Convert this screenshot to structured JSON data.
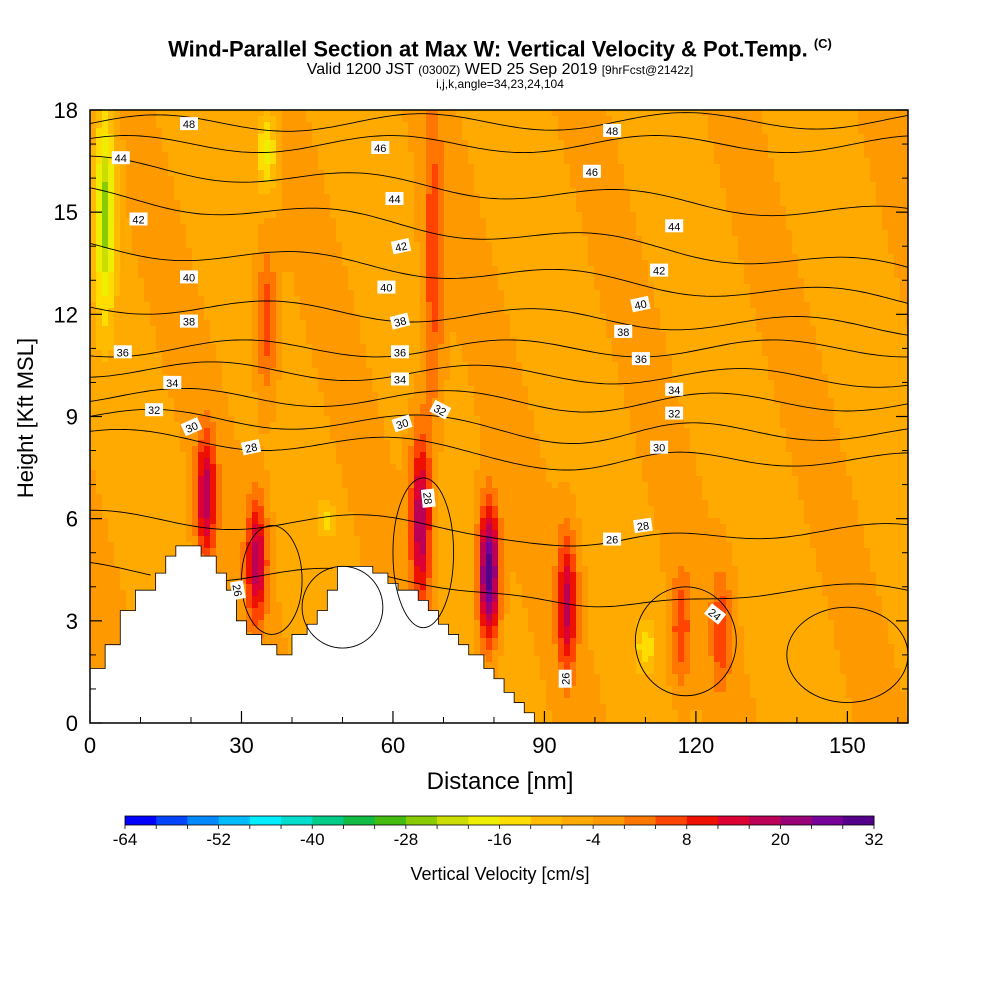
{
  "header": {
    "title": "Wind-Parallel Section at Max W: Vertical Velocity & Pot.Temp.",
    "copyright_mark": "(C)",
    "valid_main": "Valid 1200 JST",
    "valid_utc": "(0300Z)",
    "valid_date": "WED 25 Sep 2019",
    "forecast_tag": "[9hrFcst@2142z]",
    "grid_info": "i,j,k,angle=34,23,24,104"
  },
  "chart_data": {
    "type": "heatmap",
    "xlabel": "Distance [nm]",
    "ylabel": "Height [Kft MSL]",
    "xlim": [
      0,
      162
    ],
    "ylim": [
      0,
      18
    ],
    "x_ticks": [
      0,
      30,
      60,
      90,
      120,
      150
    ],
    "y_ticks": [
      0,
      3,
      6,
      9,
      12,
      15,
      18
    ],
    "colorbar": {
      "label": "Vertical Velocity [cm/s]",
      "tick_labels": [
        "-64",
        "-52",
        "-40",
        "-28",
        "-16",
        "-4",
        "8",
        "20",
        "32"
      ],
      "colors": [
        "#0000ff",
        "#0044ff",
        "#0088ff",
        "#00bbff",
        "#00eeff",
        "#00ddcc",
        "#00cc88",
        "#11bb44",
        "#44bb11",
        "#88cc00",
        "#ccdd00",
        "#eeee00",
        "#ffdd00",
        "#ffbb00",
        "#ffaa00",
        "#ff9900",
        "#ff7700",
        "#ff4400",
        "#ee1100",
        "#dd0033",
        "#bb0055",
        "#990077",
        "#770099",
        "#550088"
      ]
    },
    "background_velocity": -2,
    "updraft_cores": [
      {
        "x": 79,
        "y_bottom": 2.5,
        "y_top": 6.3,
        "w_max": 36
      },
      {
        "x": 65.5,
        "y_bottom": 3.5,
        "y_top": 8.5,
        "w_max": 24
      },
      {
        "x": 23,
        "y_bottom": 4.8,
        "y_top": 8.5,
        "w_max": 22
      },
      {
        "x": 33,
        "y_bottom": 3.0,
        "y_top": 6.5,
        "w_max": 22
      },
      {
        "x": 94.5,
        "y_bottom": 1.5,
        "y_top": 5.5,
        "w_max": 20
      },
      {
        "x": 117,
        "y_bottom": 1.0,
        "y_top": 4.5,
        "w_max": 10
      },
      {
        "x": 125,
        "y_bottom": 1.0,
        "y_top": 4.5,
        "w_max": 10
      },
      {
        "x": 68,
        "y_bottom": 9.0,
        "y_top": 18.0,
        "w_max": 10
      },
      {
        "x": 35,
        "y_bottom": 9.5,
        "y_top": 14.0,
        "w_max": 10
      }
    ],
    "downdraft_cores": [
      {
        "x": 3,
        "y_bottom": 12.0,
        "y_top": 18.0,
        "w_min": -24
      },
      {
        "x": 35,
        "y_bottom": 15.5,
        "y_top": 18.0,
        "w_min": -16
      },
      {
        "x": 110,
        "y_bottom": 1.5,
        "y_top": 3.0,
        "w_min": -12
      },
      {
        "x": 47,
        "y_bottom": 5.5,
        "y_top": 6.5,
        "w_min": -12
      }
    ],
    "theta_contours": [
      {
        "value": 48,
        "height_at_x": {
          "0": 17.6,
          "160": 17.7
        }
      },
      {
        "value": 46,
        "height_at_x": {
          "0": 17.0,
          "160": 17.0
        }
      },
      {
        "value": 44,
        "height_at_x": {
          "0": 16.4,
          "160": 14.9
        }
      },
      {
        "value": 42,
        "height_at_x": {
          "0": 15.5,
          "160": 13.3
        }
      },
      {
        "value": 40,
        "height_at_x": {
          "0": 14.0,
          "160": 12.4
        }
      },
      {
        "value": 38,
        "height_at_x": {
          "0": 12.3,
          "160": 11.6
        }
      },
      {
        "value": 36,
        "height_at_x": {
          "0": 11.0,
          "160": 11.0
        }
      },
      {
        "value": 34,
        "height_at_x": {
          "0": 10.4,
          "160": 10.1
        }
      },
      {
        "value": 32,
        "height_at_x": {
          "0": 9.6,
          "160": 9.4
        }
      },
      {
        "value": 30,
        "height_at_x": {
          "0": 9.0,
          "160": 8.5
        }
      },
      {
        "value": 28,
        "height_at_x": {
          "0": 8.4,
          "160": 7.7
        }
      },
      {
        "value": 26,
        "height_at_x": {
          "0": 6.0,
          "160": 5.6
        }
      },
      {
        "value": 24,
        "height_at_x": {
          "0": 4.5,
          "160": 3.8
        }
      }
    ],
    "contour_labels": [
      {
        "text": "48",
        "x": 19.6,
        "y": 17.6,
        "angle": 0
      },
      {
        "text": "48",
        "x": 103.4,
        "y": 17.4,
        "angle": 0
      },
      {
        "text": "46",
        "x": 57.5,
        "y": 16.9,
        "angle": 0
      },
      {
        "text": "46",
        "x": 99.4,
        "y": 16.2,
        "angle": 0
      },
      {
        "text": "44",
        "x": 6.1,
        "y": 16.6,
        "angle": 0
      },
      {
        "text": "44",
        "x": 60.3,
        "y": 15.4,
        "angle": 0
      },
      {
        "text": "44",
        "x": 115.7,
        "y": 14.6,
        "angle": 0
      },
      {
        "text": "42",
        "x": 9.6,
        "y": 14.8,
        "angle": 0
      },
      {
        "text": "42",
        "x": 61.6,
        "y": 14.0,
        "angle": 12
      },
      {
        "text": "42",
        "x": 112.7,
        "y": 13.3,
        "angle": 0
      },
      {
        "text": "40",
        "x": 19.6,
        "y": 13.1,
        "angle": 0
      },
      {
        "text": "40",
        "x": 58.7,
        "y": 12.8,
        "angle": 0
      },
      {
        "text": "40",
        "x": 109.0,
        "y": 12.3,
        "angle": 12
      },
      {
        "text": "38",
        "x": 19.6,
        "y": 11.8,
        "angle": 0
      },
      {
        "text": "38",
        "x": 61.4,
        "y": 11.8,
        "angle": 14
      },
      {
        "text": "38",
        "x": 105.6,
        "y": 11.5,
        "angle": 0
      },
      {
        "text": "36",
        "x": 6.5,
        "y": 10.9,
        "angle": 0
      },
      {
        "text": "36",
        "x": 61.4,
        "y": 10.9,
        "angle": 0
      },
      {
        "text": "36",
        "x": 109.1,
        "y": 10.7,
        "angle": 0
      },
      {
        "text": "34",
        "x": 16.3,
        "y": 10.0,
        "angle": 0
      },
      {
        "text": "34",
        "x": 61.4,
        "y": 10.1,
        "angle": 0
      },
      {
        "text": "34",
        "x": 115.7,
        "y": 9.8,
        "angle": 0
      },
      {
        "text": "32",
        "x": 12.7,
        "y": 9.2,
        "angle": 0
      },
      {
        "text": "32",
        "x": 69.4,
        "y": 9.2,
        "angle": -28
      },
      {
        "text": "32",
        "x": 115.7,
        "y": 9.1,
        "angle": 0
      },
      {
        "text": "30",
        "x": 20.1,
        "y": 8.7,
        "angle": 24
      },
      {
        "text": "30",
        "x": 61.8,
        "y": 8.8,
        "angle": 18
      },
      {
        "text": "30",
        "x": 112.7,
        "y": 8.1,
        "angle": 0
      },
      {
        "text": "28",
        "x": 31.9,
        "y": 8.1,
        "angle": 12
      },
      {
        "text": "28",
        "x": 67.0,
        "y": 6.6,
        "angle": -84
      },
      {
        "text": "28",
        "x": 109.5,
        "y": 5.8,
        "angle": 8
      },
      {
        "text": "26",
        "x": 103.4,
        "y": 5.4,
        "angle": 0
      },
      {
        "text": "26",
        "x": 29.3,
        "y": 3.9,
        "angle": -80
      },
      {
        "text": "26",
        "x": 94.1,
        "y": 1.3,
        "angle": 90
      },
      {
        "text": "24",
        "x": 123.8,
        "y": 3.2,
        "angle": -38
      }
    ],
    "terrain": [
      [
        0,
        1.6
      ],
      [
        3,
        1.6
      ],
      [
        3,
        2.3
      ],
      [
        6,
        2.3
      ],
      [
        6,
        3.3
      ],
      [
        9,
        3.3
      ],
      [
        9,
        3.9
      ],
      [
        13,
        3.9
      ],
      [
        13,
        4.4
      ],
      [
        15,
        4.4
      ],
      [
        15,
        4.9
      ],
      [
        17,
        4.9
      ],
      [
        17,
        5.2
      ],
      [
        22,
        5.2
      ],
      [
        22,
        4.9
      ],
      [
        25,
        4.9
      ],
      [
        25,
        4.4
      ],
      [
        27,
        4.4
      ],
      [
        27,
        3.9
      ],
      [
        29,
        3.9
      ],
      [
        29,
        3.0
      ],
      [
        31,
        3.0
      ],
      [
        31,
        2.6
      ],
      [
        34,
        2.6
      ],
      [
        34,
        2.3
      ],
      [
        37,
        2.3
      ],
      [
        37,
        2.0
      ],
      [
        40,
        2.0
      ],
      [
        40,
        2.6
      ],
      [
        43,
        2.6
      ],
      [
        43,
        2.9
      ],
      [
        45,
        2.9
      ],
      [
        45,
        3.3
      ],
      [
        47,
        3.3
      ],
      [
        47,
        3.9
      ],
      [
        49,
        3.9
      ],
      [
        49,
        4.6
      ],
      [
        56,
        4.6
      ],
      [
        56,
        4.4
      ],
      [
        59,
        4.4
      ],
      [
        59,
        4.1
      ],
      [
        61,
        4.1
      ],
      [
        61,
        3.9
      ],
      [
        65,
        3.9
      ],
      [
        65,
        3.6
      ],
      [
        67,
        3.6
      ],
      [
        67,
        3.3
      ],
      [
        69,
        3.3
      ],
      [
        69,
        2.9
      ],
      [
        71,
        2.9
      ],
      [
        71,
        2.6
      ],
      [
        73,
        2.6
      ],
      [
        73,
        2.3
      ],
      [
        75,
        2.3
      ],
      [
        75,
        2.0
      ],
      [
        78,
        2.0
      ],
      [
        78,
        1.6
      ],
      [
        80,
        1.6
      ],
      [
        80,
        1.3
      ],
      [
        82,
        1.3
      ],
      [
        82,
        0.9
      ],
      [
        84,
        0.9
      ],
      [
        84,
        0.6
      ],
      [
        86,
        0.6
      ],
      [
        86,
        0.3
      ],
      [
        88,
        0.3
      ],
      [
        88,
        0
      ]
    ]
  }
}
